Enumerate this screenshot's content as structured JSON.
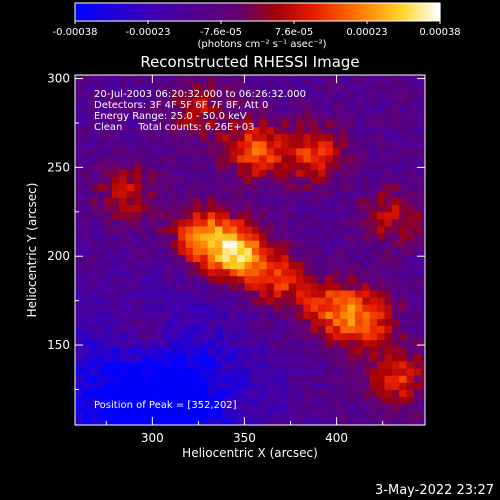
{
  "chart_data": {
    "type": "heatmap",
    "title": "Reconstructed RHESSI Image",
    "xlabel": "Heliocentric X (arcsec)",
    "ylabel": "Heliocentric Y (arcsec)",
    "x_range": [
      258,
      448
    ],
    "y_range": [
      105,
      302
    ],
    "x_ticks": [
      300,
      350,
      400
    ],
    "y_ticks": [
      150,
      200,
      250,
      300
    ],
    "colorbar": {
      "ticks": [
        "-0.00038",
        "-0.00023",
        "-7.6e-05",
        "7.6e-05",
        "0.00023",
        "0.00038"
      ],
      "range": [
        -0.00038,
        0.00038
      ],
      "units_label": "(photons cm⁻² s⁻¹ asec⁻²)"
    },
    "info_lines": [
      "20-Jul-2003 06:20:32.000 to 06:26:32.000",
      "Detectors: 3F 4F 5F 6F 7F 8F, Att 0",
      "Energy Range: 25.0 - 50.0 keV",
      "Clean     Total counts: 6.26E+03"
    ],
    "peak_label": "Position of Peak = [352,202]",
    "peak": [
      352,
      202
    ],
    "sources": [
      {
        "x": 347,
        "y": 202,
        "amplitude": 0.00038
      },
      {
        "x": 327,
        "y": 211,
        "amplitude": 0.00031
      },
      {
        "x": 370,
        "y": 186,
        "amplitude": 0.00022
      },
      {
        "x": 397,
        "y": 170,
        "amplitude": 0.00024
      },
      {
        "x": 416,
        "y": 165,
        "amplitude": 0.00025
      },
      {
        "x": 433,
        "y": 132,
        "amplitude": 0.00024
      },
      {
        "x": 356,
        "y": 260,
        "amplitude": 0.00028
      },
      {
        "x": 388,
        "y": 258,
        "amplitude": 0.00024
      },
      {
        "x": 286,
        "y": 236,
        "amplitude": 0.00018
      },
      {
        "x": 296,
        "y": 157,
        "amplitude": 0.00017
      },
      {
        "x": 430,
        "y": 222,
        "amplitude": 0.00018
      },
      {
        "x": 325,
        "y": 283,
        "amplitude": 0.00017
      }
    ],
    "negative_region": {
      "x": 300,
      "y": 118,
      "amplitude": -0.00035
    }
  },
  "timestamp": "3-May-2022 23:27"
}
